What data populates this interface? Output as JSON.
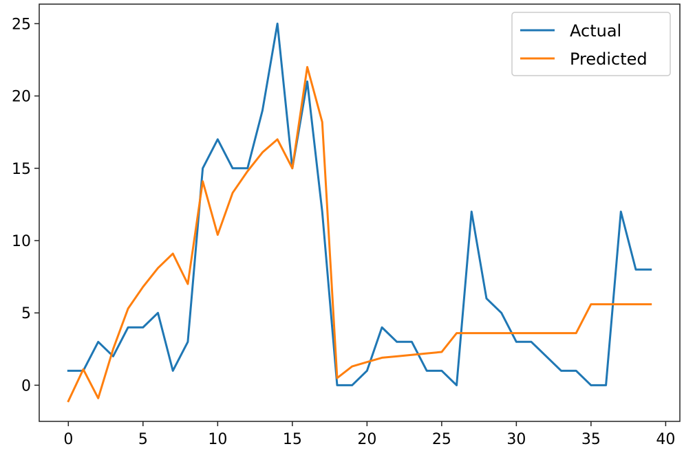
{
  "chart_data": {
    "type": "line",
    "xlim": [
      -1.95,
      40.95
    ],
    "ylim": [
      -2.5,
      26.35
    ],
    "xticks": [
      0,
      5,
      10,
      15,
      20,
      25,
      30,
      35,
      40
    ],
    "yticks": [
      0,
      5,
      10,
      15,
      20,
      25
    ],
    "grid": false,
    "legend_position": "top-right",
    "x": [
      0,
      1,
      2,
      3,
      4,
      5,
      6,
      7,
      8,
      9,
      10,
      11,
      12,
      13,
      14,
      15,
      16,
      17,
      18,
      19,
      20,
      21,
      22,
      23,
      24,
      25,
      26,
      27,
      28,
      29,
      30,
      31,
      32,
      33,
      34,
      35,
      36,
      37,
      38,
      39
    ],
    "series": [
      {
        "name": "Actual",
        "color": "#1f77b4",
        "values": [
          1,
          1,
          3,
          2,
          4,
          4,
          5,
          1,
          3,
          15,
          17,
          15,
          15,
          19,
          25,
          15,
          21,
          12,
          0,
          0,
          1,
          4,
          3,
          3,
          1,
          1,
          0,
          12,
          6,
          5,
          3,
          3,
          2,
          1,
          1,
          0,
          0,
          12,
          8,
          8
        ]
      },
      {
        "name": "Predicted",
        "color": "#ff7f0e",
        "values": [
          -1.1,
          1.1,
          -0.9,
          2.5,
          5.3,
          6.8,
          8.1,
          9.1,
          7.0,
          14.1,
          10.4,
          13.3,
          14.8,
          16.1,
          17.0,
          15.0,
          22.0,
          18.2,
          0.5,
          1.3,
          1.6,
          1.9,
          2.0,
          2.1,
          2.2,
          2.3,
          3.6,
          3.6,
          3.6,
          3.6,
          3.6,
          3.6,
          3.6,
          3.6,
          3.6,
          5.6,
          5.6,
          5.6,
          5.6,
          5.6
        ]
      }
    ]
  }
}
